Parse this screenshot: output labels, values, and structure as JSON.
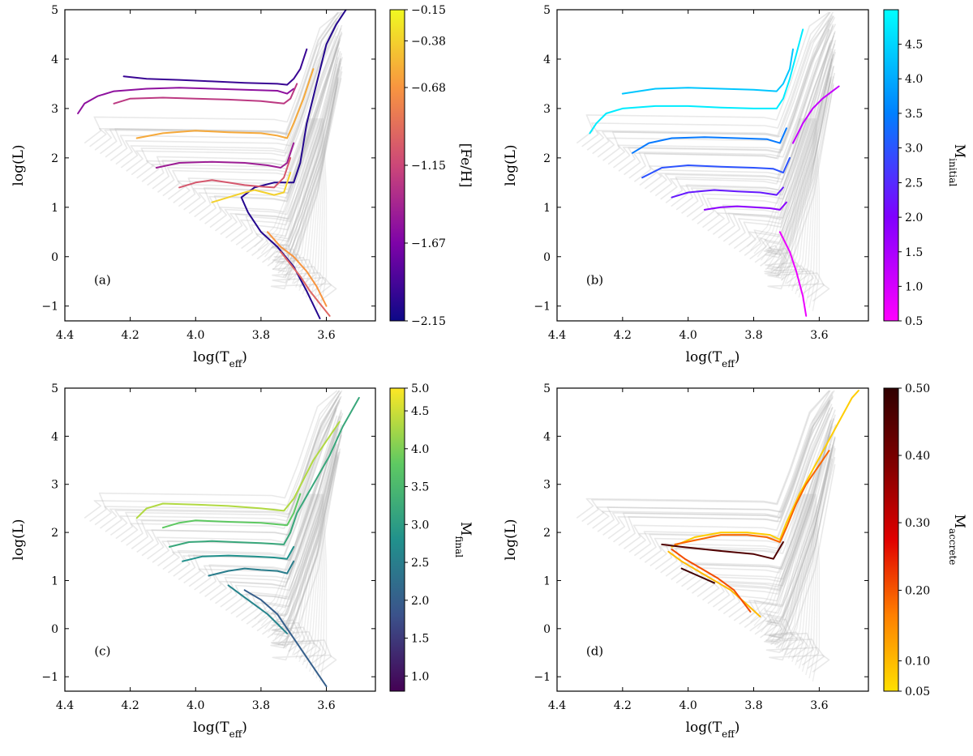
{
  "chart_data": [
    {
      "type": "line",
      "panel_label": "(a)",
      "xlabel": "log(T_eff)",
      "ylabel": "log(L)",
      "xlim": [
        4.4,
        3.45
      ],
      "ylim": [
        -1.3,
        5.0
      ],
      "xticks": [
        "4.4",
        "4.2",
        "4.0",
        "3.8",
        "3.6"
      ],
      "yticks": [
        "−1",
        "0",
        "1",
        "2",
        "3",
        "4",
        "5"
      ],
      "colorbar": {
        "label": "[Fe/H]",
        "colormap": "plasma",
        "colors": [
          "#0d0887",
          "#7e03a8",
          "#cc4778",
          "#f89540",
          "#f0f921"
        ],
        "ticks": [
          "−2.15",
          "−1.67",
          "−1.15",
          "−0.68",
          "−0.38",
          "−0.15"
        ],
        "tick_positions": [
          0.0,
          0.25,
          0.5,
          0.75,
          0.9,
          1.0
        ]
      },
      "series": [
        {
          "color_value": 0.05,
          "x": [
            3.62,
            3.66,
            3.7,
            3.75,
            3.8,
            3.84,
            3.86,
            3.82,
            3.76,
            3.7,
            3.68,
            3.66,
            3.63,
            3.6,
            3.57,
            3.54
          ],
          "y": [
            -1.25,
            -0.7,
            -0.2,
            0.2,
            0.5,
            0.9,
            1.2,
            1.4,
            1.5,
            1.5,
            1.9,
            2.7,
            3.5,
            4.3,
            4.7,
            5.0
          ]
        },
        {
          "color_value": 0.1,
          "x": [
            4.22,
            4.15,
            4.05,
            3.95,
            3.85,
            3.75,
            3.72,
            3.7,
            3.68,
            3.66
          ],
          "y": [
            3.65,
            3.6,
            3.58,
            3.55,
            3.52,
            3.5,
            3.48,
            3.6,
            3.8,
            4.2
          ]
        },
        {
          "color_value": 0.3,
          "x": [
            4.36,
            4.34,
            4.3,
            4.25,
            4.15,
            4.05,
            3.95,
            3.85,
            3.75,
            3.72,
            3.7
          ],
          "y": [
            2.9,
            3.1,
            3.25,
            3.35,
            3.4,
            3.42,
            3.4,
            3.38,
            3.36,
            3.3,
            3.4
          ]
        },
        {
          "color_value": 0.45,
          "x": [
            4.25,
            4.2,
            4.1,
            4.0,
            3.9,
            3.8,
            3.73,
            3.71,
            3.69
          ],
          "y": [
            3.1,
            3.2,
            3.22,
            3.2,
            3.18,
            3.15,
            3.1,
            3.2,
            3.5
          ]
        },
        {
          "color_value": 0.35,
          "x": [
            4.12,
            4.05,
            3.95,
            3.85,
            3.78,
            3.74,
            3.72,
            3.7
          ],
          "y": [
            1.8,
            1.9,
            1.92,
            1.9,
            1.85,
            1.8,
            1.9,
            2.3
          ]
        },
        {
          "color_value": 0.55,
          "x": [
            4.05,
            4.0,
            3.95,
            3.9,
            3.85,
            3.8,
            3.76,
            3.73,
            3.71
          ],
          "y": [
            1.4,
            1.5,
            1.55,
            1.5,
            1.45,
            1.42,
            1.4,
            1.6,
            2.0
          ]
        },
        {
          "color_value": 0.8,
          "x": [
            4.18,
            4.1,
            4.0,
            3.9,
            3.8,
            3.75,
            3.72,
            3.7,
            3.67,
            3.64
          ],
          "y": [
            2.4,
            2.5,
            2.55,
            2.52,
            2.5,
            2.45,
            2.4,
            2.7,
            3.2,
            3.8
          ]
        },
        {
          "color_value": 0.9,
          "x": [
            3.95,
            3.9,
            3.85,
            3.82,
            3.79,
            3.76,
            3.73,
            3.71
          ],
          "y": [
            1.1,
            1.2,
            1.3,
            1.35,
            1.3,
            1.25,
            1.3,
            1.7
          ]
        },
        {
          "color_value": 0.75,
          "x": [
            3.78,
            3.74,
            3.7,
            3.66,
            3.63,
            3.6
          ],
          "y": [
            0.5,
            0.2,
            0.0,
            -0.3,
            -0.6,
            -1.0
          ]
        },
        {
          "color_value": 0.6,
          "x": [
            3.74,
            3.71,
            3.68,
            3.65,
            3.62,
            3.59
          ],
          "y": [
            0.1,
            -0.15,
            -0.4,
            -0.7,
            -0.95,
            -1.2
          ]
        }
      ]
    },
    {
      "type": "line",
      "panel_label": "(b)",
      "xlabel": "log(T_eff)",
      "ylabel": "log(L)",
      "xlim": [
        4.4,
        3.45
      ],
      "ylim": [
        -1.3,
        5.0
      ],
      "xticks": [
        "4.4",
        "4.2",
        "4.0",
        "3.8",
        "3.6"
      ],
      "yticks": [
        "−1",
        "0",
        "1",
        "2",
        "3",
        "4",
        "5"
      ],
      "colorbar": {
        "label": "M_initial",
        "colormap": "cool",
        "colors": [
          "#ff00ff",
          "#8000ff",
          "#0080ff",
          "#00ffff"
        ],
        "ticks": [
          "0.5",
          "1.0",
          "1.5",
          "2.0",
          "2.5",
          "3.0",
          "3.5",
          "4.0",
          "4.5"
        ],
        "tick_positions": [
          0.0,
          0.111,
          0.222,
          0.333,
          0.444,
          0.556,
          0.667,
          0.778,
          0.889
        ]
      },
      "series": [
        {
          "color_value": 0.95,
          "x": [
            4.3,
            4.28,
            4.25,
            4.2,
            4.1,
            4.0,
            3.9,
            3.8,
            3.73,
            3.71,
            3.69,
            3.67,
            3.65
          ],
          "y": [
            2.5,
            2.7,
            2.9,
            3.0,
            3.05,
            3.05,
            3.02,
            3.0,
            3.0,
            3.2,
            3.6,
            4.1,
            4.6
          ]
        },
        {
          "color_value": 0.85,
          "x": [
            4.2,
            4.1,
            4.0,
            3.9,
            3.8,
            3.73,
            3.71,
            3.69,
            3.68
          ],
          "y": [
            3.3,
            3.4,
            3.42,
            3.4,
            3.38,
            3.35,
            3.5,
            3.8,
            4.2
          ]
        },
        {
          "color_value": 0.65,
          "x": [
            4.17,
            4.12,
            4.05,
            3.95,
            3.85,
            3.76,
            3.72,
            3.7
          ],
          "y": [
            2.1,
            2.3,
            2.4,
            2.42,
            2.4,
            2.38,
            2.3,
            2.6
          ]
        },
        {
          "color_value": 0.55,
          "x": [
            4.14,
            4.08,
            4.0,
            3.9,
            3.8,
            3.74,
            3.71,
            3.69
          ],
          "y": [
            1.6,
            1.8,
            1.85,
            1.82,
            1.8,
            1.78,
            1.7,
            2.0
          ]
        },
        {
          "color_value": 0.4,
          "x": [
            4.05,
            4.0,
            3.92,
            3.85,
            3.78,
            3.73,
            3.71
          ],
          "y": [
            1.2,
            1.3,
            1.35,
            1.32,
            1.3,
            1.25,
            1.4
          ]
        },
        {
          "color_value": 0.3,
          "x": [
            3.95,
            3.9,
            3.85,
            3.8,
            3.75,
            3.72,
            3.7
          ],
          "y": [
            0.95,
            1.0,
            1.02,
            1.0,
            0.98,
            0.95,
            1.1
          ]
        },
        {
          "color_value": 0.15,
          "x": [
            3.68,
            3.65,
            3.62,
            3.59,
            3.56,
            3.54
          ],
          "y": [
            2.3,
            2.7,
            3.0,
            3.2,
            3.35,
            3.45
          ]
        },
        {
          "color_value": 0.05,
          "x": [
            3.72,
            3.69,
            3.67,
            3.65,
            3.64
          ],
          "y": [
            0.5,
            0.1,
            -0.3,
            -0.8,
            -1.2
          ]
        }
      ]
    },
    {
      "type": "line",
      "panel_label": "(c)",
      "xlabel": "log(T_eff)",
      "ylabel": "log(L)",
      "xlim": [
        4.4,
        3.45
      ],
      "ylim": [
        -1.3,
        5.0
      ],
      "xticks": [
        "4.4",
        "4.2",
        "4.0",
        "3.8",
        "3.6"
      ],
      "yticks": [
        "−1",
        "0",
        "1",
        "2",
        "3",
        "4",
        "5"
      ],
      "colorbar": {
        "label": "M_final",
        "colormap": "viridis",
        "colors": [
          "#440154",
          "#3b528b",
          "#21918c",
          "#5ec962",
          "#fde725"
        ],
        "ticks": [
          "1.0",
          "1.5",
          "2.0",
          "2.5",
          "3.0",
          "3.5",
          "4.0",
          "4.5",
          "5.0"
        ],
        "tick_positions": [
          0.05,
          0.175,
          0.3,
          0.425,
          0.55,
          0.675,
          0.8,
          0.925,
          1.0
        ]
      },
      "series": [
        {
          "color_value": 0.88,
          "x": [
            4.18,
            4.15,
            4.1,
            4.0,
            3.9,
            3.8,
            3.73,
            3.7,
            3.67,
            3.64,
            3.6,
            3.56
          ],
          "y": [
            2.3,
            2.5,
            2.6,
            2.58,
            2.55,
            2.5,
            2.45,
            2.7,
            3.1,
            3.5,
            3.9,
            4.3
          ]
        },
        {
          "color_value": 0.75,
          "x": [
            4.1,
            4.05,
            4.0,
            3.9,
            3.8,
            3.72,
            3.7,
            3.68
          ],
          "y": [
            2.1,
            2.2,
            2.25,
            2.22,
            2.2,
            2.15,
            2.4,
            2.8
          ]
        },
        {
          "color_value": 0.6,
          "x": [
            4.08,
            4.02,
            3.95,
            3.88,
            3.8,
            3.73,
            3.71,
            3.69,
            3.64,
            3.59,
            3.55,
            3.5
          ],
          "y": [
            1.7,
            1.8,
            1.82,
            1.8,
            1.78,
            1.75,
            2.0,
            2.4,
            3.0,
            3.6,
            4.2,
            4.8
          ]
        },
        {
          "color_value": 0.5,
          "x": [
            4.04,
            3.98,
            3.9,
            3.82,
            3.76,
            3.72,
            3.7
          ],
          "y": [
            1.4,
            1.5,
            1.52,
            1.5,
            1.48,
            1.45,
            1.7
          ]
        },
        {
          "color_value": 0.42,
          "x": [
            3.96,
            3.9,
            3.85,
            3.8,
            3.75,
            3.72,
            3.7
          ],
          "y": [
            1.1,
            1.2,
            1.25,
            1.22,
            1.2,
            1.15,
            1.4
          ]
        },
        {
          "color_value": 0.3,
          "x": [
            3.85,
            3.8,
            3.75,
            3.72,
            3.69,
            3.66,
            3.63,
            3.6
          ],
          "y": [
            0.8,
            0.6,
            0.3,
            0.0,
            -0.3,
            -0.6,
            -0.9,
            -1.2
          ]
        },
        {
          "color_value": 0.45,
          "x": [
            3.9,
            3.86,
            3.82,
            3.78,
            3.75,
            3.72
          ],
          "y": [
            0.9,
            0.7,
            0.5,
            0.3,
            0.1,
            -0.1
          ]
        }
      ]
    },
    {
      "type": "line",
      "panel_label": "(d)",
      "xlabel": "log(T_eff)",
      "ylabel": "log(L)",
      "xlim": [
        4.4,
        3.45
      ],
      "ylim": [
        -1.3,
        5.0
      ],
      "xticks": [
        "4.4",
        "4.2",
        "4.0",
        "3.8",
        "3.6"
      ],
      "yticks": [
        "−1",
        "0",
        "1",
        "2",
        "3",
        "4",
        "5"
      ],
      "colorbar": {
        "label": "M_accrete",
        "colormap": "hot_r",
        "colors": [
          "#ffe000",
          "#ff8000",
          "#e00000",
          "#800000",
          "#300000"
        ],
        "ticks": [
          "0.05",
          "0.10",
          "0.20",
          "0.30",
          "0.40",
          "0.50"
        ],
        "tick_positions": [
          0.0,
          0.1,
          0.333,
          0.556,
          0.778,
          1.0
        ]
      },
      "series": [
        {
          "color_value": 0.05,
          "x": [
            4.05,
            3.98,
            3.9,
            3.82,
            3.75,
            3.72,
            3.7,
            3.66,
            3.62,
            3.58,
            3.54,
            3.5,
            3.48
          ],
          "y": [
            1.7,
            1.9,
            2.0,
            2.0,
            1.95,
            1.85,
            2.2,
            2.8,
            3.3,
            3.8,
            4.3,
            4.8,
            4.95
          ]
        },
        {
          "color_value": 0.3,
          "x": [
            4.04,
            3.97,
            3.9,
            3.82,
            3.76,
            3.72,
            3.7,
            3.67,
            3.64,
            3.6,
            3.57
          ],
          "y": [
            1.75,
            1.85,
            1.95,
            1.95,
            1.9,
            1.8,
            2.1,
            2.6,
            3.0,
            3.4,
            3.7
          ]
        },
        {
          "color_value": 0.9,
          "x": [
            4.08,
            4.02,
            3.95,
            3.88,
            3.8,
            3.74,
            3.71
          ],
          "y": [
            1.75,
            1.7,
            1.65,
            1.6,
            1.55,
            1.45,
            1.8
          ]
        },
        {
          "color_value": 0.1,
          "x": [
            4.06,
            4.02,
            3.97,
            3.92,
            3.87,
            3.82,
            3.78
          ],
          "y": [
            1.6,
            1.4,
            1.2,
            1.0,
            0.8,
            0.5,
            0.25
          ]
        },
        {
          "color_value": 0.35,
          "x": [
            4.05,
            4.01,
            3.96,
            3.91,
            3.86,
            3.81
          ],
          "y": [
            1.65,
            1.45,
            1.25,
            1.05,
            0.8,
            0.35
          ]
        },
        {
          "color_value": 0.95,
          "x": [
            4.02,
            3.97,
            3.92
          ],
          "y": [
            1.25,
            1.1,
            0.95
          ]
        }
      ]
    }
  ]
}
